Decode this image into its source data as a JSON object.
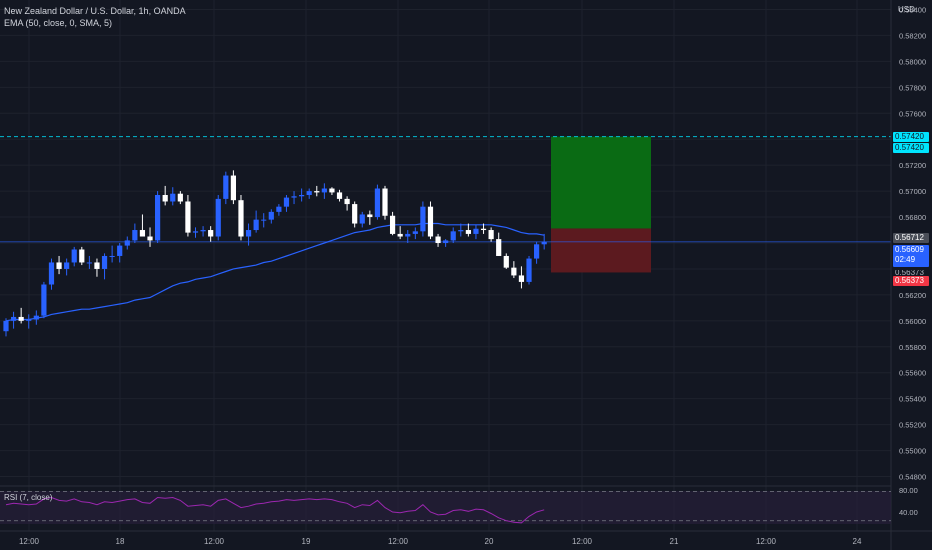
{
  "legend": {
    "symbol": "New Zealand Dollar / U.S. Dollar, 1h, OANDA",
    "indicator": "EMA (50, close, 0, SMA, 5)"
  },
  "rsi": {
    "label": "RSI (7, close)",
    "ticks": [
      "80.00",
      "40.00"
    ]
  },
  "price_axis": {
    "currency": "USD",
    "ticks": [
      "0.58400",
      "0.58200",
      "0.58000",
      "0.57800",
      "0.57600",
      "0.57200",
      "0.57000",
      "0.56800",
      "0.56200",
      "0.56000",
      "0.55800",
      "0.55600",
      "0.55400",
      "0.55200",
      "0.55000",
      "0.54800"
    ]
  },
  "badges": {
    "target_top": "0.57420",
    "target": "0.57420",
    "entry": "0.56712",
    "current": "0.56609",
    "countdown": "02:49",
    "stop": "0.56373",
    "stop_partial": "0.56373"
  },
  "time_axis": [
    "12:00",
    "18",
    "12:00",
    "19",
    "12:00",
    "20",
    "12:00",
    "21",
    "12:00",
    "24"
  ],
  "colors": {
    "background": "#131722",
    "bull_candle": "#2962ff",
    "bear_candle": "#ffffff",
    "ema": "#2962ff",
    "target_zone": "#0a6b14",
    "stop_zone": "#5c1a1f",
    "rsi_line": "#9c27b0",
    "target_badge": "#00e5ff",
    "stop_badge": "#f23645"
  },
  "chart_data": {
    "type": "candlestick",
    "symbol": "NZDUSD",
    "timeframe": "1h",
    "ylim": [
      0.5475,
      0.5845
    ],
    "target": 0.5742,
    "entry": 0.56712,
    "stop": 0.56373,
    "current": 0.56609,
    "candles": [
      [
        0.5592,
        0.5602,
        0.5588,
        0.56
      ],
      [
        0.56,
        0.5607,
        0.5594,
        0.5603
      ],
      [
        0.5603,
        0.561,
        0.5598,
        0.56
      ],
      [
        0.56,
        0.5605,
        0.5594,
        0.5601
      ],
      [
        0.5601,
        0.5608,
        0.5597,
        0.5604
      ],
      [
        0.5604,
        0.563,
        0.5602,
        0.5628
      ],
      [
        0.5628,
        0.5648,
        0.5624,
        0.5645
      ],
      [
        0.5645,
        0.565,
        0.5636,
        0.564
      ],
      [
        0.564,
        0.5648,
        0.5635,
        0.5645
      ],
      [
        0.5645,
        0.5657,
        0.5642,
        0.5655
      ],
      [
        0.5655,
        0.5657,
        0.5643,
        0.5645
      ],
      [
        0.5645,
        0.565,
        0.564,
        0.5645
      ],
      [
        0.5645,
        0.5648,
        0.5634,
        0.564
      ],
      [
        0.564,
        0.5652,
        0.5632,
        0.565
      ],
      [
        0.565,
        0.5658,
        0.5645,
        0.565
      ],
      [
        0.565,
        0.566,
        0.5645,
        0.5658
      ],
      [
        0.5658,
        0.5665,
        0.5655,
        0.5662
      ],
      [
        0.5662,
        0.5675,
        0.566,
        0.567
      ],
      [
        0.567,
        0.5682,
        0.5667,
        0.5665
      ],
      [
        0.5665,
        0.5672,
        0.5657,
        0.5662
      ],
      [
        0.5662,
        0.57,
        0.566,
        0.5697
      ],
      [
        0.5697,
        0.5704,
        0.5689,
        0.5692
      ],
      [
        0.5692,
        0.5703,
        0.5689,
        0.5698
      ],
      [
        0.5698,
        0.57,
        0.569,
        0.5692
      ],
      [
        0.5692,
        0.5697,
        0.5665,
        0.5668
      ],
      [
        0.5668,
        0.5672,
        0.5664,
        0.5669
      ],
      [
        0.5669,
        0.5673,
        0.5665,
        0.567
      ],
      [
        0.567,
        0.5673,
        0.5661,
        0.5665
      ],
      [
        0.5665,
        0.5697,
        0.5662,
        0.5694
      ],
      [
        0.5694,
        0.5715,
        0.569,
        0.5712
      ],
      [
        0.5712,
        0.5716,
        0.569,
        0.5693
      ],
      [
        0.5693,
        0.5697,
        0.5662,
        0.5665
      ],
      [
        0.5665,
        0.5675,
        0.5658,
        0.567
      ],
      [
        0.567,
        0.5685,
        0.5668,
        0.5678
      ],
      [
        0.5678,
        0.5683,
        0.5672,
        0.5678
      ],
      [
        0.5678,
        0.5686,
        0.5675,
        0.5684
      ],
      [
        0.5684,
        0.569,
        0.5681,
        0.5688
      ],
      [
        0.5688,
        0.5697,
        0.5684,
        0.5695
      ],
      [
        0.5695,
        0.57,
        0.569,
        0.5696
      ],
      [
        0.5696,
        0.5702,
        0.5692,
        0.5697
      ],
      [
        0.5697,
        0.5702,
        0.5694,
        0.57
      ],
      [
        0.57,
        0.5704,
        0.5696,
        0.5699
      ],
      [
        0.5699,
        0.5706,
        0.5694,
        0.5702
      ],
      [
        0.5702,
        0.5703,
        0.5697,
        0.5699
      ],
      [
        0.5699,
        0.5701,
        0.5692,
        0.5694
      ],
      [
        0.5694,
        0.5696,
        0.5685,
        0.569
      ],
      [
        0.569,
        0.5692,
        0.5672,
        0.5675
      ],
      [
        0.5675,
        0.5684,
        0.5672,
        0.5682
      ],
      [
        0.5682,
        0.5685,
        0.5674,
        0.568
      ],
      [
        0.568,
        0.5705,
        0.5678,
        0.5702
      ],
      [
        0.5702,
        0.5704,
        0.5678,
        0.5681
      ],
      [
        0.5681,
        0.5684,
        0.5666,
        0.5667
      ],
      [
        0.5667,
        0.5673,
        0.5663,
        0.5665
      ],
      [
        0.5665,
        0.567,
        0.566,
        0.5667
      ],
      [
        0.5667,
        0.5672,
        0.5663,
        0.5669
      ],
      [
        0.5669,
        0.5692,
        0.5665,
        0.5688
      ],
      [
        0.5688,
        0.5692,
        0.5663,
        0.5665
      ],
      [
        0.5665,
        0.5667,
        0.5657,
        0.566
      ],
      [
        0.566,
        0.5663,
        0.5657,
        0.5662
      ],
      [
        0.5662,
        0.5672,
        0.566,
        0.5669
      ],
      [
        0.5669,
        0.5675,
        0.5665,
        0.567
      ],
      [
        0.567,
        0.5675,
        0.5665,
        0.5667
      ],
      [
        0.5667,
        0.5674,
        0.5663,
        0.5671
      ],
      [
        0.5671,
        0.5675,
        0.5667,
        0.567
      ],
      [
        0.567,
        0.5672,
        0.5661,
        0.5663
      ],
      [
        0.5663,
        0.5668,
        0.565,
        0.565
      ],
      [
        0.565,
        0.5652,
        0.564,
        0.5641
      ],
      [
        0.5641,
        0.5646,
        0.5633,
        0.5635
      ],
      [
        0.5635,
        0.5642,
        0.5625,
        0.563
      ],
      [
        0.563,
        0.565,
        0.5628,
        0.5648
      ],
      [
        0.5648,
        0.5661,
        0.5644,
        0.5659
      ],
      [
        0.5659,
        0.5667,
        0.5655,
        0.5661
      ]
    ],
    "ema": [
      0.56,
      0.5601,
      0.5601,
      0.5601,
      0.5602,
      0.5603,
      0.5605,
      0.5606,
      0.5607,
      0.5608,
      0.5609,
      0.5609,
      0.561,
      0.5611,
      0.5612,
      0.5613,
      0.5614,
      0.5616,
      0.5617,
      0.5618,
      0.5621,
      0.5624,
      0.5627,
      0.5629,
      0.563,
      0.5632,
      0.5633,
      0.5634,
      0.5636,
      0.5638,
      0.564,
      0.5641,
      0.5642,
      0.5643,
      0.5645,
      0.5646,
      0.5648,
      0.565,
      0.5652,
      0.5654,
      0.5656,
      0.5658,
      0.566,
      0.5662,
      0.5664,
      0.5666,
      0.5668,
      0.5669,
      0.567,
      0.5672,
      0.5673,
      0.5674,
      0.5674,
      0.5674,
      0.5674,
      0.5675,
      0.5675,
      0.5675,
      0.5674,
      0.5674,
      0.5674,
      0.5674,
      0.5674,
      0.5674,
      0.5674,
      0.5673,
      0.5672,
      0.567,
      0.5668,
      0.5667,
      0.5667,
      0.5666
    ],
    "rsi": [
      62,
      64,
      63,
      62,
      63,
      70,
      72,
      68,
      67,
      70,
      66,
      65,
      62,
      66,
      65,
      67,
      69,
      70,
      65,
      64,
      72,
      71,
      72,
      68,
      60,
      61,
      62,
      60,
      68,
      70,
      64,
      58,
      60,
      63,
      64,
      66,
      67,
      69,
      68,
      69,
      70,
      69,
      70,
      69,
      66,
      64,
      58,
      62,
      61,
      68,
      58,
      52,
      51,
      53,
      54,
      62,
      52,
      48,
      49,
      54,
      55,
      53,
      56,
      55,
      50,
      44,
      40,
      38,
      37,
      46,
      52,
      55
    ],
    "rsi_ylim": [
      30,
      85
    ],
    "rsi_levels": [
      80,
      40
    ]
  }
}
